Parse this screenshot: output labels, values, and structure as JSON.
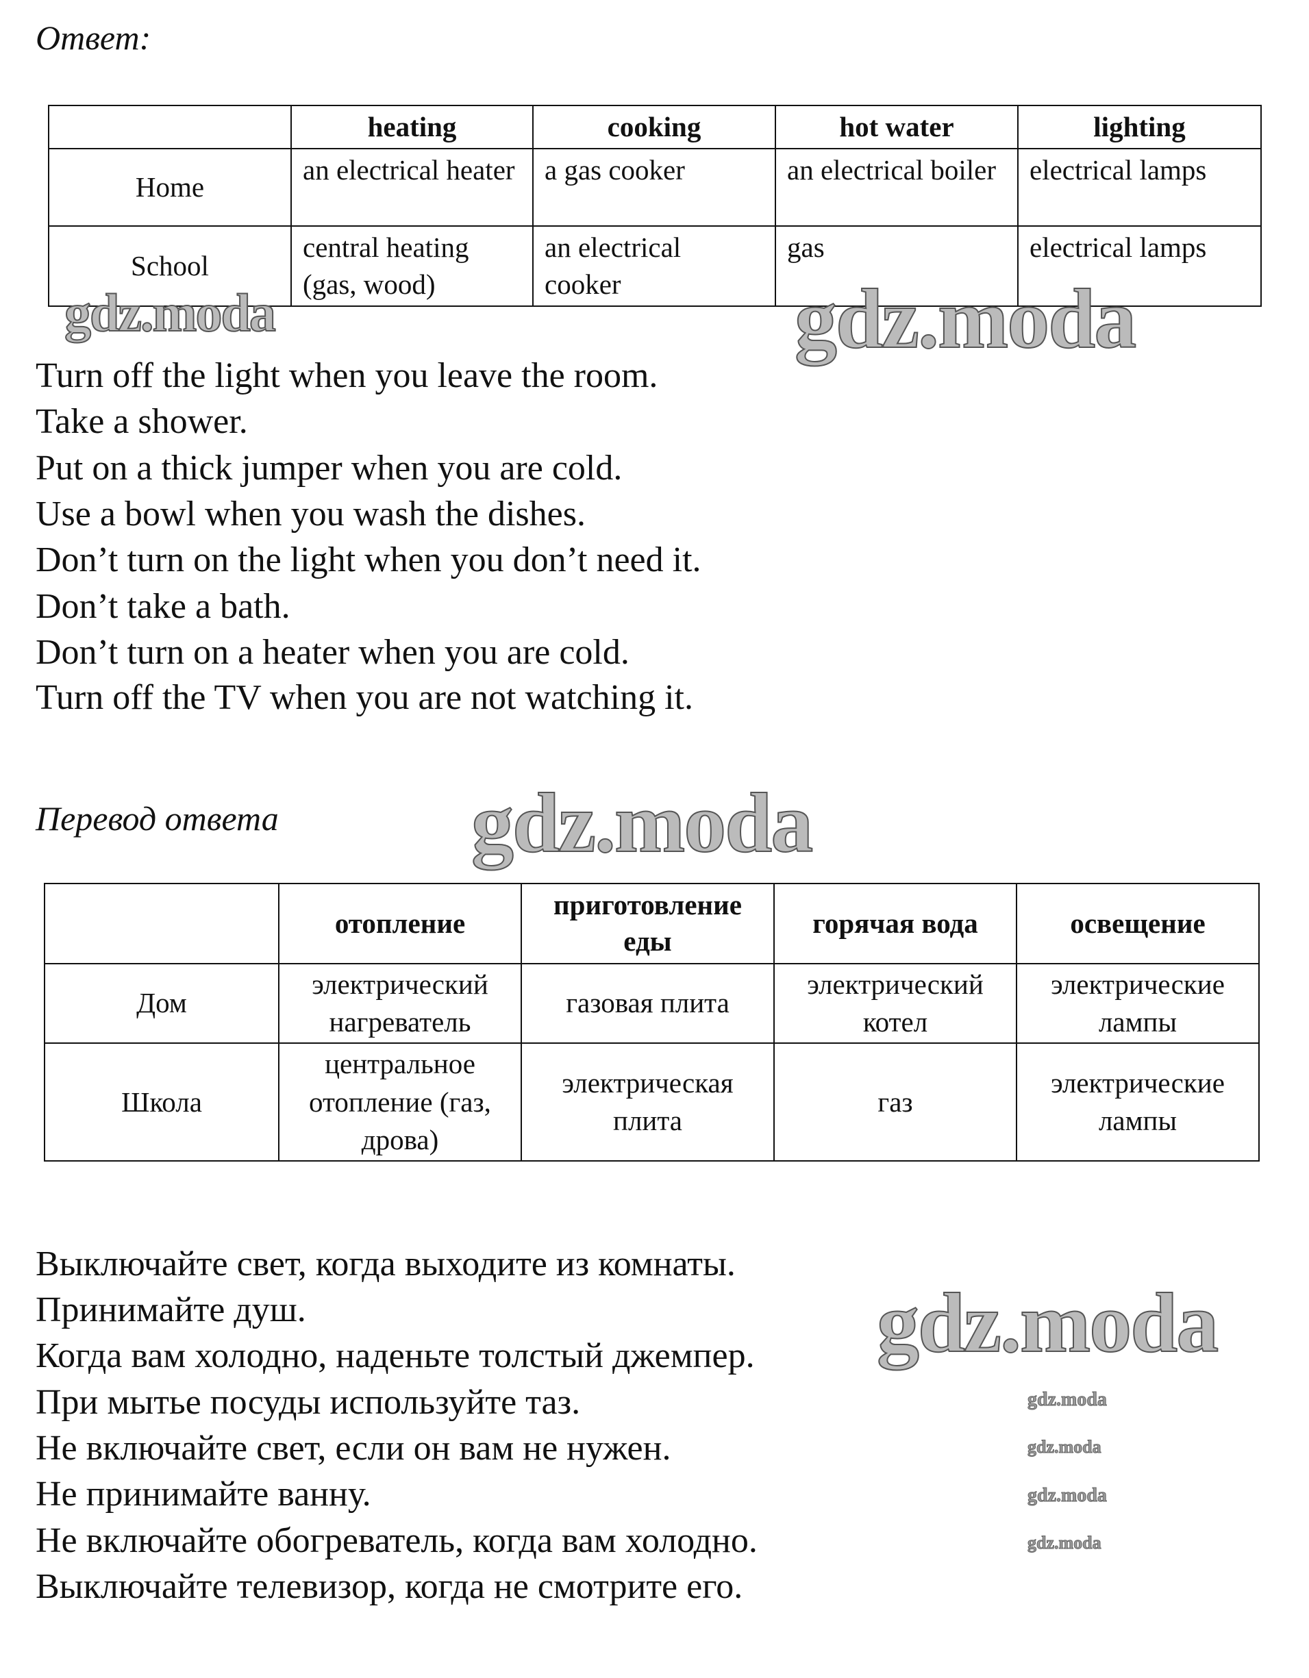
{
  "answer_heading": "Ответ:",
  "table_en": {
    "headers": [
      "",
      "heating",
      "cooking",
      "hot water",
      "lighting"
    ],
    "rows": [
      [
        "Home",
        "an electrical heater",
        "a gas cooker",
        "an electrical boiler",
        "electrical lamps"
      ],
      [
        "School",
        "central heating (gas, wood)",
        "an electrical cooker",
        "gas",
        "electrical lamps"
      ]
    ]
  },
  "tips_en": [
    "Turn off the light when you leave the room.",
    "Take a shower.",
    "Put on a thick jumper when you are cold.",
    "Use a bowl when you wash the dishes.",
    "Don’t turn on the light when you don’t need it.",
    "Don’t take a bath.",
    "Don’t turn on a heater when you are cold.",
    "Turn off the TV when you are not watching it."
  ],
  "translation_heading": "Перевод ответа",
  "table_ru": {
    "headers": [
      "",
      "отопление",
      "приготовление еды",
      "горячая вода",
      "освещение"
    ],
    "rows": [
      [
        "Дом",
        "электрический нагреватель",
        "газовая плита",
        "электрический котел",
        "электрические лампы"
      ],
      [
        "Школа",
        "центральное отопление (газ, дрова)",
        "электрическая плита",
        "газ",
        "электрические лампы"
      ]
    ]
  },
  "tips_ru": [
    "Выключайте свет, когда выходите из комнаты.",
    "Принимайте душ.",
    "Когда вам холодно, наденьте толстый джемпер.",
    "При мытье посуды используйте таз.",
    "Не включайте свет, если он вам не нужен.",
    "Не принимайте ванну.",
    "Не включайте обогреватель, когда вам холодно.",
    "Выключайте телевизор, когда не смотрите его."
  ],
  "watermark": "gdz.moda"
}
